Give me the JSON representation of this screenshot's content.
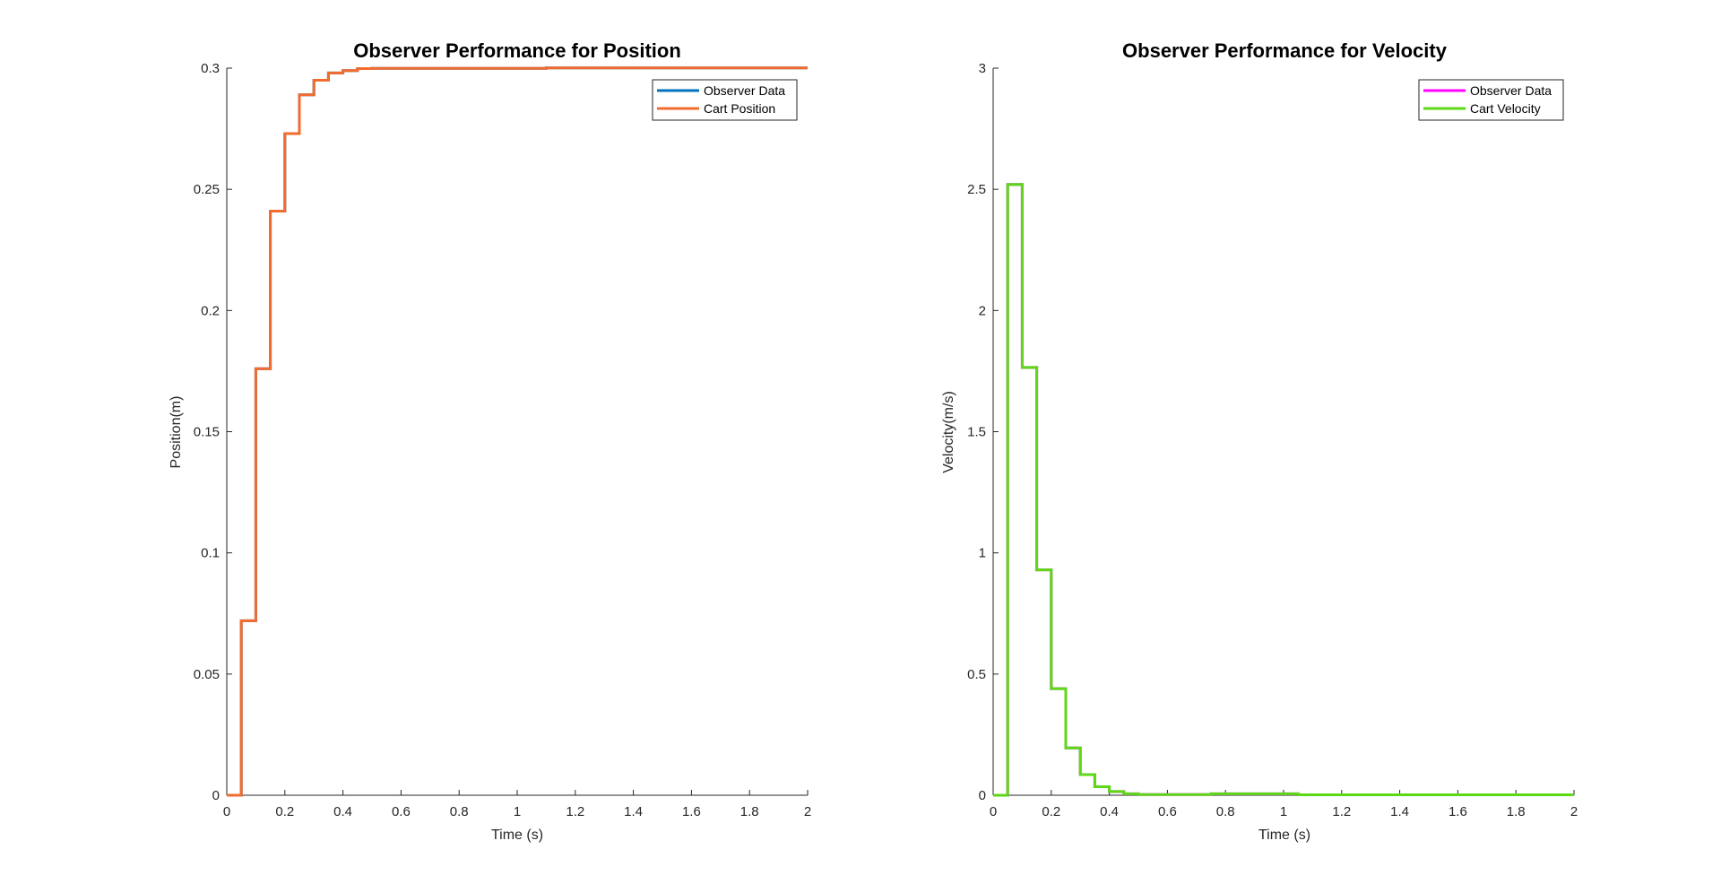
{
  "colors": {
    "observer_pos": "#0072BD",
    "cart_pos": "#F26B2F",
    "observer_vel": "#FF00FF",
    "cart_vel": "#5CD916",
    "axis": "#262626",
    "background": "#FFFFFF"
  },
  "chart_data": [
    {
      "type": "line",
      "title": "Observer Performance for Position",
      "xlabel": "Time (s)",
      "ylabel": "Position(m)",
      "xlim": [
        0,
        2
      ],
      "ylim": [
        0,
        0.3
      ],
      "xticks": [
        0,
        0.2,
        0.4,
        0.6,
        0.8,
        1,
        1.2,
        1.4,
        1.6,
        1.8,
        2
      ],
      "xtick_labels": [
        "0",
        "0.2",
        "0.4",
        "0.6",
        "0.8",
        "1",
        "1.2",
        "1.4",
        "1.6",
        "1.8",
        "2"
      ],
      "yticks": [
        0,
        0.05,
        0.1,
        0.15,
        0.2,
        0.25,
        0.3
      ],
      "ytick_labels": [
        "0",
        "0.05",
        "0.1",
        "0.15",
        "0.2",
        "0.25",
        "0.3"
      ],
      "grid": false,
      "legend_position": "top-right",
      "series": [
        {
          "name": "Observer Data",
          "color": "#0072BD",
          "step": true,
          "x": [
            0,
            0.05,
            0.1,
            0.15,
            0.2,
            0.25,
            0.3,
            0.35,
            0.4,
            0.45,
            0.5,
            1.1,
            2
          ],
          "y": [
            0,
            0.072,
            0.176,
            0.241,
            0.273,
            0.289,
            0.295,
            0.298,
            0.299,
            0.2998,
            0.2999,
            0.3001,
            0.3001
          ]
        },
        {
          "name": "Cart Position",
          "color": "#F26B2F",
          "step": true,
          "x": [
            0,
            0.05,
            0.1,
            0.15,
            0.2,
            0.25,
            0.3,
            0.35,
            0.4,
            0.45,
            0.5,
            1.1,
            2
          ],
          "y": [
            0,
            0.072,
            0.176,
            0.241,
            0.273,
            0.289,
            0.295,
            0.298,
            0.299,
            0.2998,
            0.2999,
            0.3001,
            0.3001
          ]
        }
      ]
    },
    {
      "type": "line",
      "title": "Observer Performance for Velocity",
      "xlabel": "Time (s)",
      "ylabel": "Velocity(m/s)",
      "xlim": [
        0,
        2
      ],
      "ylim": [
        0,
        3
      ],
      "xticks": [
        0,
        0.2,
        0.4,
        0.6,
        0.8,
        1,
        1.2,
        1.4,
        1.6,
        1.8,
        2
      ],
      "xtick_labels": [
        "0",
        "0.2",
        "0.4",
        "0.6",
        "0.8",
        "1",
        "1.2",
        "1.4",
        "1.6",
        "1.8",
        "2"
      ],
      "yticks": [
        0,
        0.5,
        1,
        1.5,
        2,
        2.5,
        3
      ],
      "ytick_labels": [
        "0",
        "0.5",
        "1",
        "1.5",
        "2",
        "2.5",
        "3"
      ],
      "grid": false,
      "legend_position": "top-right",
      "series": [
        {
          "name": "Observer Data",
          "color": "#FF00FF",
          "step": true,
          "x": [
            0,
            0.05,
            0.1,
            0.15,
            0.2,
            0.25,
            0.3,
            0.35,
            0.4,
            0.45,
            0.5,
            0.75,
            1.05,
            2
          ],
          "y": [
            0,
            2.52,
            1.765,
            0.93,
            0.44,
            0.195,
            0.085,
            0.035,
            0.015,
            0.006,
            0.003,
            0.006,
            0.002,
            0.002
          ]
        },
        {
          "name": "Cart Velocity",
          "color": "#5CD916",
          "step": true,
          "x": [
            0,
            0.05,
            0.1,
            0.15,
            0.2,
            0.25,
            0.3,
            0.35,
            0.4,
            0.45,
            0.5,
            0.75,
            1.05,
            2
          ],
          "y": [
            0,
            2.52,
            1.765,
            0.93,
            0.44,
            0.195,
            0.085,
            0.035,
            0.015,
            0.006,
            0.003,
            0.006,
            0.002,
            0.002
          ]
        }
      ]
    }
  ]
}
